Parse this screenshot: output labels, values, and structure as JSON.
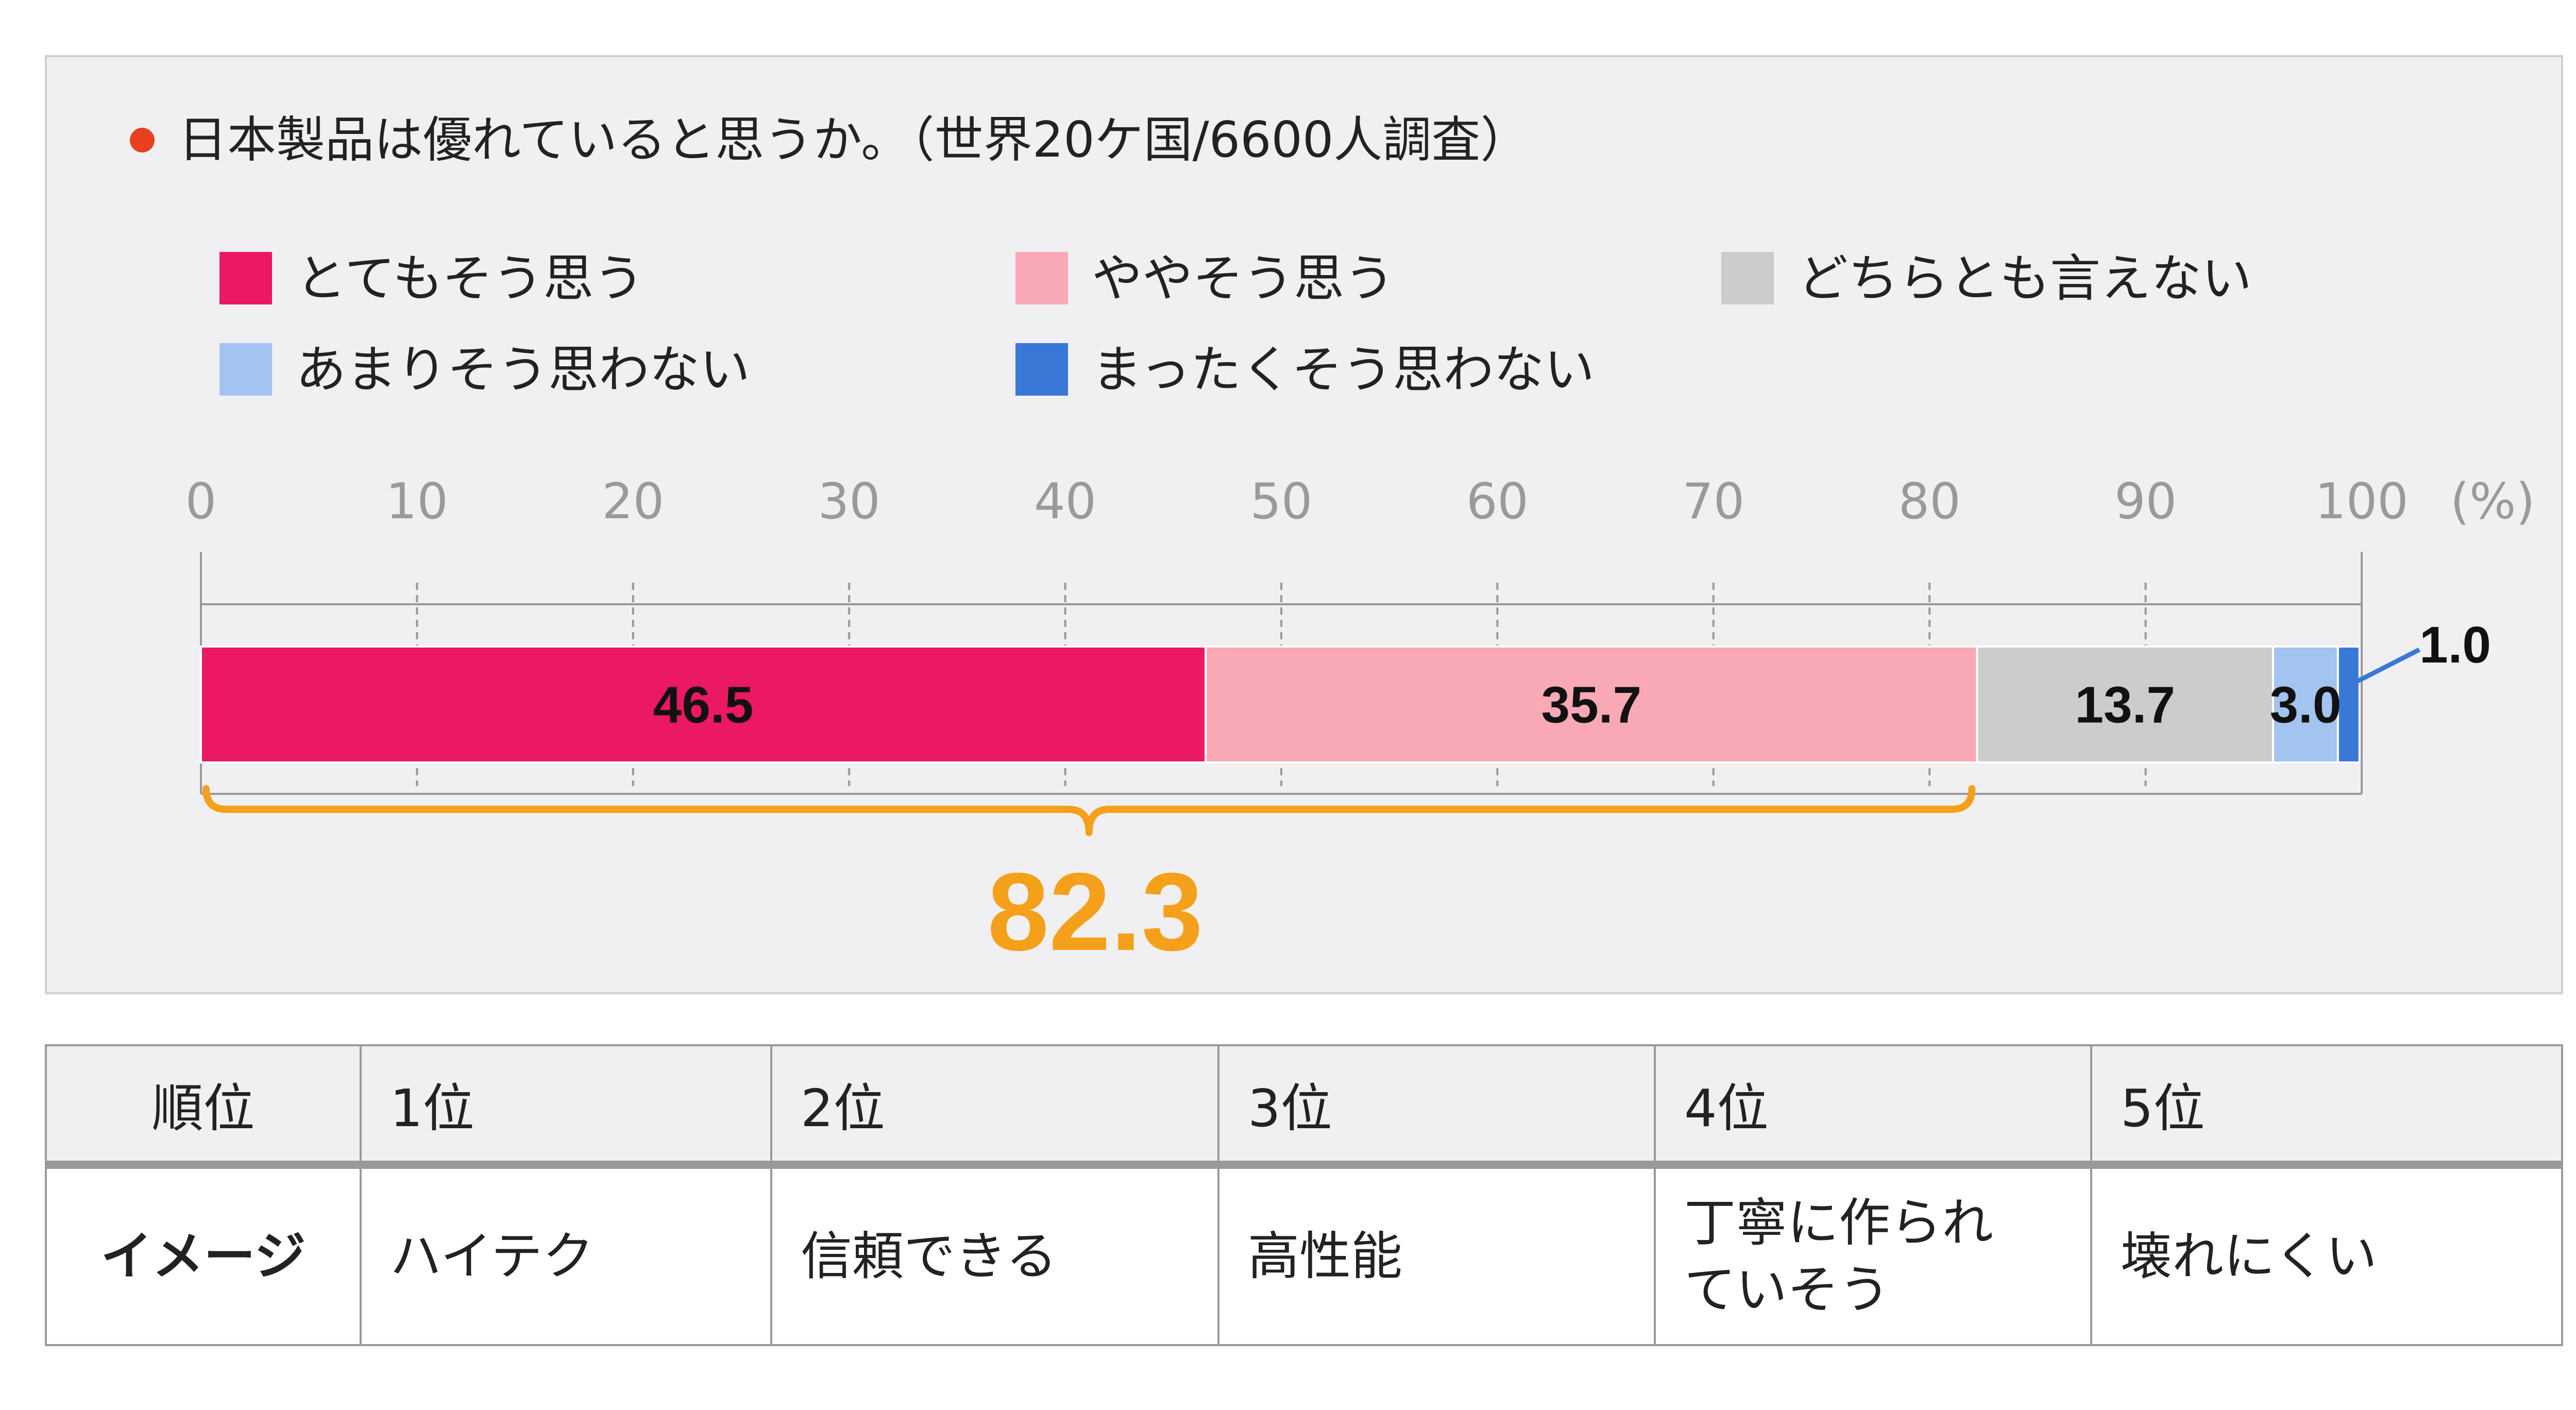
{
  "chart_data": {
    "type": "bar",
    "orientation": "horizontal-stacked",
    "title": "日本製品は優れていると思うか。（世界20ケ国/6600人調査）",
    "legend": [
      {
        "label": "とてもそう思う",
        "color": "#eb1864"
      },
      {
        "label": "ややそう思う",
        "color": "#f9a9b5"
      },
      {
        "label": "どちらとも言えない",
        "color": "#cccccc"
      },
      {
        "label": "あまりそう思わない",
        "color": "#a3c3f0"
      },
      {
        "label": "まったくそう思わない",
        "color": "#3a78d8"
      }
    ],
    "series": [
      {
        "name": "とてもそう思う",
        "value": 46.5,
        "label": "46.5"
      },
      {
        "name": "ややそう思う",
        "value": 35.7,
        "label": "35.7"
      },
      {
        "name": "どちらとも言えない",
        "value": 13.7,
        "label": "13.7"
      },
      {
        "name": "あまりそう思わない",
        "value": 3.0,
        "label": "3.0"
      },
      {
        "name": "まったくそう思わない",
        "value": 1.0,
        "label": "1.0"
      }
    ],
    "xlim": [
      0,
      100
    ],
    "xticks": [
      "0",
      "10",
      "20",
      "30",
      "40",
      "50",
      "60",
      "70",
      "80",
      "90",
      "100"
    ],
    "unit": "(%)",
    "grid": true,
    "bracket_total": "82.3",
    "colors": {
      "bullet": "#e8401c",
      "bracket": "#f5a01a",
      "tick_text": "#9a9a9a",
      "grid": "#999999"
    }
  },
  "ranking_table": {
    "header_label": "順位",
    "ranks": [
      "1位",
      "2位",
      "3位",
      "4位",
      "5位"
    ],
    "row_label": "イメージ",
    "images": [
      [
        "ハイテク"
      ],
      [
        "信頼できる"
      ],
      [
        "高性能"
      ],
      [
        "丁寧に作られ",
        "ていそう"
      ],
      [
        "壊れにくい"
      ]
    ]
  }
}
